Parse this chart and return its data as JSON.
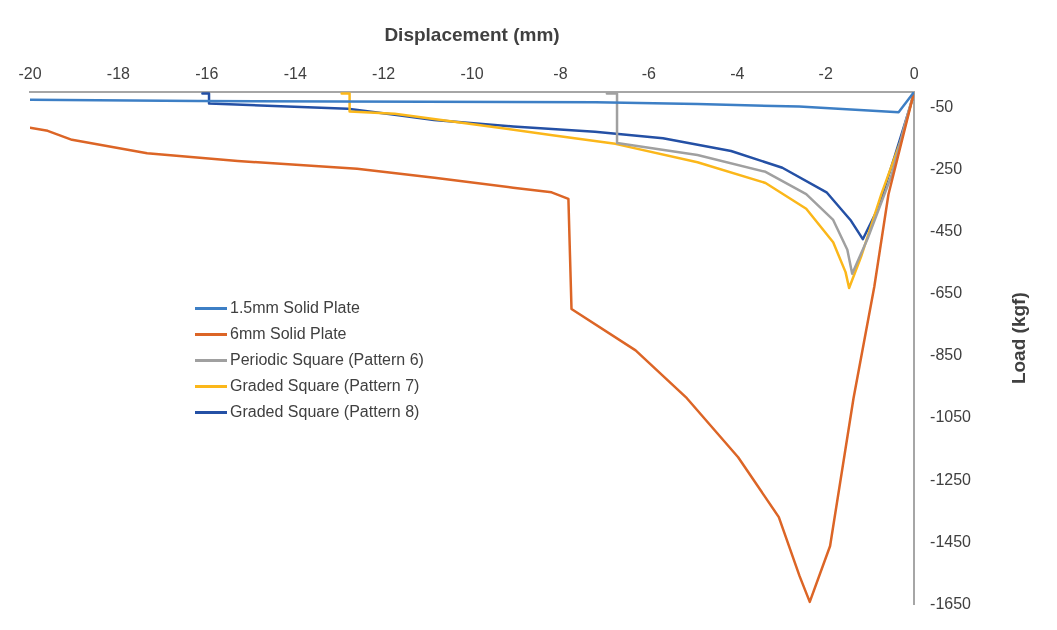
{
  "chart_data": {
    "type": "line",
    "xlabel": "Displacement (mm)",
    "ylabel": "Load (kgf)",
    "xlim": [
      -20,
      0
    ],
    "xticks": [
      -20,
      -18,
      -16,
      -14,
      -12,
      -10,
      -8,
      -6,
      -4,
      -2,
      0
    ],
    "ylim": [
      -1650,
      0
    ],
    "yticks": [
      -1650,
      -1450,
      -1250,
      -1050,
      -850,
      -650,
      -450,
      -250,
      -50
    ],
    "grid": false,
    "legend": "center left",
    "marker": "none",
    "line_style": "solid",
    "series": [
      {
        "name": "1.5mm Solid Plate",
        "color": "#3d7fc5",
        "x": [
          -20,
          -16.2,
          -7.2,
          -4.9,
          -2.6,
          -0.35,
          0
        ],
        "values": [
          -25,
          -29,
          -33,
          -39,
          -47,
          -65,
          0
        ]
      },
      {
        "name": "6mm Solid Plate",
        "color": "#dc6526",
        "x": [
          -20,
          -19.6,
          -19.05,
          -17.35,
          -15.3,
          -12.6,
          -10.85,
          -9.07,
          -8.2,
          -7.82,
          -7.75,
          -6.3,
          -5.14,
          -3.98,
          -3.06,
          -2.59,
          -2.36,
          -1.9,
          -1.37,
          -0.9,
          -0.58,
          0
        ],
        "values": [
          -115,
          -125,
          -154,
          -197,
          -222,
          -247,
          -276,
          -308,
          -323,
          -344,
          -699,
          -832,
          -986,
          -1176,
          -1369,
          -1559,
          -1642,
          -1462,
          -986,
          -627,
          -330,
          0
        ]
      },
      {
        "name": "Periodic Square (Pattern 6)",
        "color": "#a0a0a0",
        "x": [
          -6.95,
          -6.72,
          -6.72,
          -4.9,
          -3.36,
          -2.44,
          -1.83,
          -1.51,
          -1.4,
          -1.05,
          -0.51,
          -0.2,
          0
        ],
        "values": [
          -5,
          -5,
          -164,
          -203,
          -257,
          -329,
          -412,
          -508,
          -585,
          -472,
          -269,
          -100,
          0
        ]
      },
      {
        "name": "Graded Square (Pattern 7)",
        "color": "#fbb71a",
        "x": [
          -12.95,
          -12.77,
          -12.77,
          -11.75,
          -9.6,
          -8.18,
          -6.76,
          -4.9,
          -3.36,
          -2.44,
          -1.83,
          -1.55,
          -1.47,
          -1.2,
          -0.74,
          -0.28,
          0
        ],
        "values": [
          -5,
          -5,
          -63,
          -70,
          -111,
          -139,
          -167,
          -226,
          -293,
          -376,
          -484,
          -580,
          -631,
          -531,
          -329,
          -149,
          0
        ]
      },
      {
        "name": "Graded Square (Pattern 8)",
        "color": "#2450a5",
        "x": [
          -16.1,
          -15.95,
          -15.95,
          -12.81,
          -11.75,
          -10.86,
          -9.07,
          -7.22,
          -5.68,
          -4.14,
          -2.98,
          -1.98,
          -1.44,
          -1.16,
          -0.82,
          -0.44,
          0
        ],
        "values": [
          -5,
          -5,
          -37,
          -54,
          -73,
          -90,
          -111,
          -128,
          -149,
          -190,
          -244,
          -323,
          -412,
          -474,
          -376,
          -208,
          -6
        ]
      }
    ]
  }
}
